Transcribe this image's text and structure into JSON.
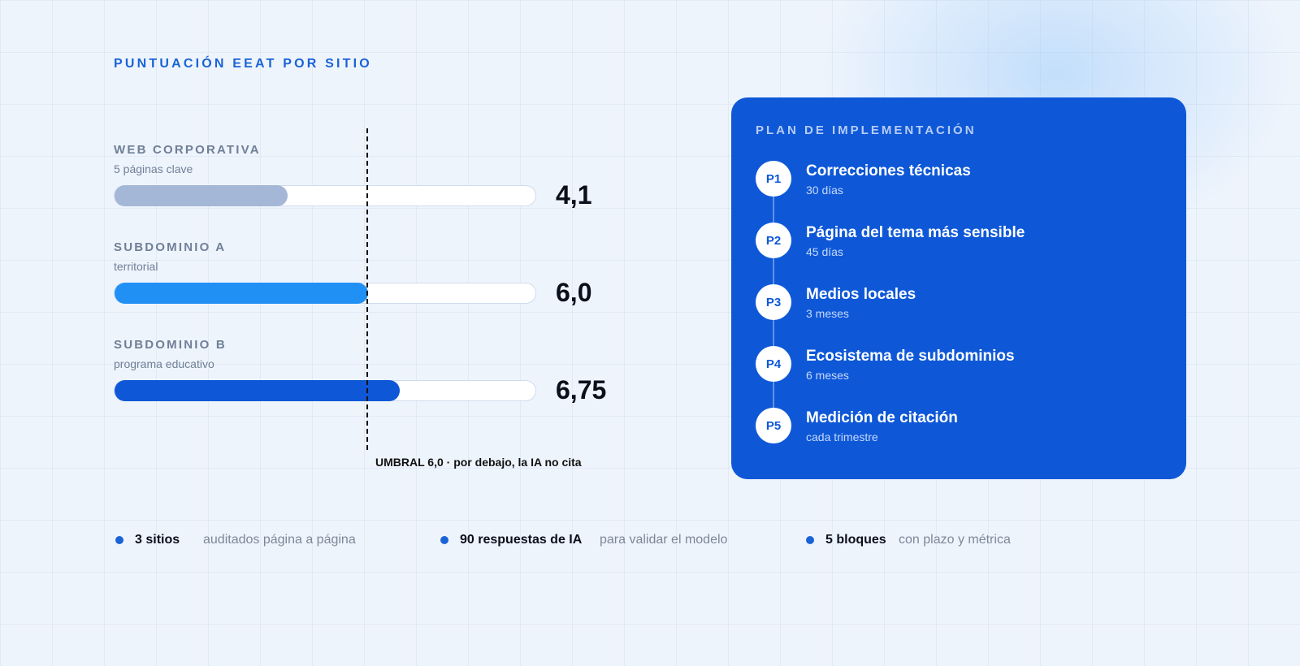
{
  "section_title": "PUNTUACIÓN EEAT POR SITIO",
  "chart_data": {
    "type": "bar",
    "orientation": "horizontal",
    "title": "PUNTUACIÓN EEAT POR SITIO",
    "xlim": [
      0,
      10
    ],
    "categories": [
      "WEB CORPORATIVA",
      "SUBDOMINIO A",
      "SUBDOMINIO B"
    ],
    "subtitles": [
      "5 páginas clave",
      "territorial",
      "programa educativo"
    ],
    "values": [
      4.1,
      6.0,
      6.75
    ],
    "value_labels": [
      "4,1",
      "6,0",
      "6,75"
    ],
    "colors": [
      "#a4b7d6",
      "#2090f5",
      "#0e58d8"
    ],
    "threshold": {
      "value": 6.0,
      "label": "UMBRAL 6,0 · por debajo, la IA no cita"
    }
  },
  "plan": {
    "title": "PLAN DE IMPLEMENTACIÓN",
    "steps": [
      {
        "badge": "P1",
        "title": "Correcciones técnicas",
        "time": "30 días"
      },
      {
        "badge": "P2",
        "title": "Página del tema más sensible",
        "time": "45 días"
      },
      {
        "badge": "P3",
        "title": "Medios locales",
        "time": "3 meses"
      },
      {
        "badge": "P4",
        "title": "Ecosistema de subdominios",
        "time": "6 meses"
      },
      {
        "badge": "P5",
        "title": "Medición de citación",
        "time": "cada trimestre"
      }
    ]
  },
  "stats": [
    {
      "strong": "3 sitios",
      "desc": "auditados página a página"
    },
    {
      "strong": "90 respuestas de IA",
      "desc": "para validar el modelo"
    },
    {
      "strong": "5 bloques",
      "desc": "con plazo y métrica"
    }
  ]
}
